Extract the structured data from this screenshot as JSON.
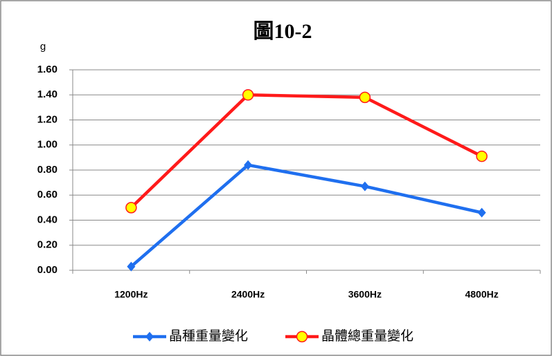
{
  "chart_data": {
    "type": "line",
    "title": "圖10-2",
    "y_label": "g",
    "categories": [
      "1200Hz",
      "2400Hz",
      "3600Hz",
      "4800Hz"
    ],
    "series": [
      {
        "name": "晶種重量變化",
        "color": "#1f6fef",
        "marker": "diamond",
        "values": [
          0.03,
          0.84,
          0.67,
          0.46
        ]
      },
      {
        "name": "晶體總重量變化",
        "color": "#ff1a1a",
        "marker": "circle",
        "values": [
          0.5,
          1.4,
          1.38,
          0.91
        ]
      }
    ],
    "ylim": [
      0,
      1.6
    ],
    "yticks": [
      {
        "value": 0,
        "label": "0.00"
      },
      {
        "value": 0.2,
        "label": "0.20"
      },
      {
        "value": 0.4,
        "label": "0.40"
      },
      {
        "value": 0.6,
        "label": "0.60"
      },
      {
        "value": 0.8,
        "label": "0.80"
      },
      {
        "value": 1.0,
        "label": "1.00"
      },
      {
        "value": 1.2,
        "label": "1.20"
      },
      {
        "value": 1.4,
        "label": "1.40"
      },
      {
        "value": 1.6,
        "label": "1.60"
      }
    ],
    "grid": true,
    "legend": "bottom"
  }
}
